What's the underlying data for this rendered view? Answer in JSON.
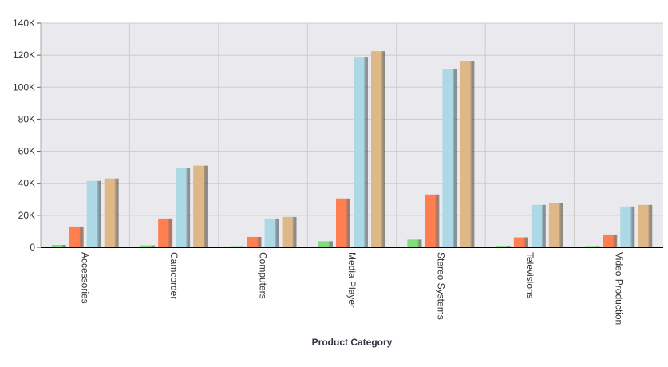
{
  "chart_data": {
    "type": "bar",
    "categories": [
      "Accessories",
      "Camcorder",
      "Computers",
      "Media Player",
      "Stereo Systems",
      "Televisions",
      "Video Production"
    ],
    "series": [
      {
        "color": "#7fdc7f",
        "values": [
          1500,
          1200,
          700,
          3800,
          4800,
          900,
          800
        ]
      },
      {
        "color": "#ff7f50",
        "values": [
          13000,
          18000,
          6500,
          30500,
          33000,
          6200,
          8000
        ]
      },
      {
        "color": "#add8e6",
        "values": [
          41500,
          49500,
          18000,
          118500,
          111500,
          26500,
          25500
        ]
      },
      {
        "color": "#deb887",
        "values": [
          43000,
          51000,
          19000,
          122500,
          116500,
          27500,
          26500
        ]
      }
    ],
    "title": "",
    "xlabel": "Product Category",
    "ylabel": "",
    "ylim": [
      0,
      140000
    ],
    "yticks": [
      0,
      20000,
      40000,
      60000,
      80000,
      100000,
      120000,
      140000
    ],
    "ytick_labels": [
      "0",
      "20K",
      "40K",
      "60K",
      "80K",
      "100K",
      "120K",
      "140K"
    ],
    "grid": true,
    "x_tick_rotation": "vertical",
    "plot_background": "#eaeaee",
    "grid_color": "#cccccc"
  }
}
